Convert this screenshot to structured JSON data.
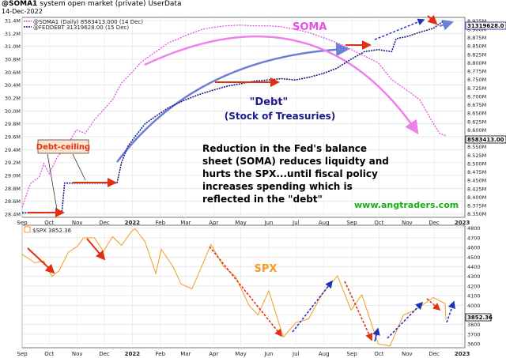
{
  "header": {
    "title": "@SOMA1",
    "subtitle": "system open market (private)",
    "source": "UserData",
    "date": "14-Dec-2022"
  },
  "colors": {
    "soma": "#e64fe6",
    "debt": "#1a1a8c",
    "spx": "#f39c1f",
    "arrow_red": "#e03010",
    "arrow_blue": "#2233bb",
    "trend_blue": "#6d7ed6",
    "trend_pink": "#ee80ee",
    "green": "#16b016",
    "axis_flag_soma": "#000000"
  },
  "upper": {
    "legend_soma": "@SOMA1 (Daily) 8583413.000 (14 Dec)",
    "legend_debt": "@FEDDEBT 31319628.00 (15 Dec)",
    "label_soma": "SOMA",
    "label_debt": "\"Debt\"",
    "label_debt_sub": "(Stock of Treasuries)",
    "callout_debt_ceiling": "Debt-ceiling",
    "annotation": [
      "Reduction in the Fed's balance",
      "sheet (SOMA) reduces liquidty and",
      "hurts the SPX...until fiscal policy",
      "increases spending which is",
      "reflected in the \"debt\""
    ],
    "website": "www.angtraders.com",
    "left_ticks": [
      "31.4M",
      "31.2M",
      "31.0M",
      "30.8M",
      "30.6M",
      "30.4M",
      "30.2M",
      "30.0M",
      "29.8M",
      "29.6M",
      "29.4M",
      "29.2M",
      "29.0M",
      "28.8M",
      "28.6M",
      "28.4M"
    ],
    "right_ticks": [
      "8.925M",
      "8.900M",
      "8.875M",
      "8.850M",
      "8.825M",
      "8.800M",
      "8.775M",
      "8.750M",
      "8.725M",
      "8.700M",
      "8.675M",
      "8.650M",
      "8.625M",
      "8.600M",
      "8.575M",
      "8.550M",
      "8.525M",
      "8.500M",
      "8.475M",
      "8.450M",
      "8.425M",
      "8.400M",
      "8.375M",
      "8.350M"
    ],
    "flag_debt": "31319628.0",
    "flag_soma": "8583413.00"
  },
  "lower": {
    "legend_spx": "$SPX 3852.36",
    "label_spx": "SPX",
    "right_ticks": [
      "4800",
      "4700",
      "4600",
      "4500",
      "4400",
      "4300",
      "4200",
      "4100",
      "4000",
      "3900",
      "3800",
      "3700",
      "3600"
    ],
    "flag_spx": "3852.36"
  },
  "x_axis": {
    "labels": [
      "Sep",
      "Oct",
      "Nov",
      "Dec",
      "2022",
      "Feb",
      "Mar",
      "Apr",
      "May",
      "Jun",
      "Jul",
      "Aug",
      "Sep",
      "Oct",
      "Nov",
      "Dec",
      "2023"
    ]
  },
  "chart_data": [
    {
      "type": "line",
      "title": "@SOMA1 system open market (private)",
      "x_range": [
        "2021-09",
        "2023-01"
      ],
      "series": [
        {
          "name": "@FEDDEBT",
          "axis": "left",
          "ylim": [
            28.35,
            31.45
          ],
          "points": [
            [
              "2021-09-01",
              28.42
            ],
            [
              "2021-09-25",
              28.42
            ],
            [
              "2021-10-15",
              28.43
            ],
            [
              "2021-10-18",
              28.88
            ],
            [
              "2021-11-15",
              28.88
            ],
            [
              "2021-12-10",
              28.88
            ],
            [
              "2021-12-15",
              28.88
            ],
            [
              "2021-12-20",
              29.2
            ],
            [
              "2021-12-27",
              29.45
            ],
            [
              "2022-01-05",
              29.62
            ],
            [
              "2022-01-15",
              29.8
            ],
            [
              "2022-01-25",
              29.9
            ],
            [
              "2022-02-10",
              30.05
            ],
            [
              "2022-02-25",
              30.15
            ],
            [
              "2022-03-15",
              30.25
            ],
            [
              "2022-03-31",
              30.32
            ],
            [
              "2022-04-15",
              30.38
            ],
            [
              "2022-04-30",
              30.42
            ],
            [
              "2022-05-15",
              30.46
            ],
            [
              "2022-05-31",
              30.48
            ],
            [
              "2022-06-15",
              30.5
            ],
            [
              "2022-06-30",
              30.48
            ],
            [
              "2022-07-15",
              30.52
            ],
            [
              "2022-07-31",
              30.58
            ],
            [
              "2022-08-15",
              30.66
            ],
            [
              "2022-08-31",
              30.8
            ],
            [
              "2022-09-15",
              30.92
            ],
            [
              "2022-09-30",
              30.95
            ],
            [
              "2022-10-15",
              30.92
            ],
            [
              "2022-10-20",
              31.12
            ],
            [
              "2022-10-31",
              31.15
            ],
            [
              "2022-11-15",
              31.22
            ],
            [
              "2022-11-30",
              31.28
            ],
            [
              "2022-12-10",
              31.38
            ],
            [
              "2022-12-15",
              31.32
            ]
          ]
        },
        {
          "name": "@SOMA1 (Daily)",
          "axis": "right",
          "ylim": [
            8.34,
            8.935
          ],
          "points": [
            [
              "2021-09-01",
              8.37
            ],
            [
              "2021-09-10",
              8.44
            ],
            [
              "2021-09-20",
              8.46
            ],
            [
              "2021-09-25",
              8.5
            ],
            [
              "2021-10-01",
              8.47
            ],
            [
              "2021-10-10",
              8.52
            ],
            [
              "2021-10-20",
              8.55
            ],
            [
              "2021-10-31",
              8.6
            ],
            [
              "2021-11-10",
              8.59
            ],
            [
              "2021-11-20",
              8.63
            ],
            [
              "2021-11-30",
              8.66
            ],
            [
              "2021-12-10",
              8.69
            ],
            [
              "2021-12-20",
              8.74
            ],
            [
              "2021-12-31",
              8.77
            ],
            [
              "2022-01-10",
              8.8
            ],
            [
              "2022-01-20",
              8.82
            ],
            [
              "2022-01-31",
              8.84
            ],
            [
              "2022-02-10",
              8.86
            ],
            [
              "2022-02-20",
              8.87
            ],
            [
              "2022-02-28",
              8.88
            ],
            [
              "2022-03-10",
              8.89
            ],
            [
              "2022-03-20",
              8.9
            ],
            [
              "2022-03-31",
              8.905
            ],
            [
              "2022-04-15",
              8.91
            ],
            [
              "2022-04-30",
              8.912
            ],
            [
              "2022-05-15",
              8.91
            ],
            [
              "2022-05-31",
              8.91
            ],
            [
              "2022-06-15",
              8.907
            ],
            [
              "2022-06-30",
              8.9
            ],
            [
              "2022-07-15",
              8.89
            ],
            [
              "2022-07-31",
              8.875
            ],
            [
              "2022-08-15",
              8.86
            ],
            [
              "2022-08-31",
              8.84
            ],
            [
              "2022-09-15",
              8.82
            ],
            [
              "2022-09-30",
              8.8
            ],
            [
              "2022-10-15",
              8.75
            ],
            [
              "2022-10-31",
              8.72
            ],
            [
              "2022-11-15",
              8.69
            ],
            [
              "2022-11-30",
              8.62
            ],
            [
              "2022-12-07",
              8.59
            ],
            [
              "2022-12-14",
              8.583
            ]
          ]
        }
      ],
      "right_ylim": [
        8.34,
        8.935
      ]
    },
    {
      "type": "line",
      "title": "$SPX 3852.36",
      "x_range": [
        "2021-09",
        "2023-01"
      ],
      "ylim": [
        3560,
        4830
      ],
      "series": [
        {
          "name": "$SPX",
          "points": [
            [
              "2021-09-01",
              4530
            ],
            [
              "2021-09-15",
              4440
            ],
            [
              "2021-09-25",
              4460
            ],
            [
              "2021-10-04",
              4300
            ],
            [
              "2021-10-12",
              4360
            ],
            [
              "2021-10-22",
              4550
            ],
            [
              "2021-11-01",
              4610
            ],
            [
              "2021-11-08",
              4700
            ],
            [
              "2021-11-20",
              4700
            ],
            [
              "2021-11-30",
              4560
            ],
            [
              "2021-12-10",
              4710
            ],
            [
              "2021-12-20",
              4620
            ],
            [
              "2021-12-31",
              4766
            ],
            [
              "2022-01-04",
              4795
            ],
            [
              "2022-01-15",
              4660
            ],
            [
              "2022-01-27",
              4330
            ],
            [
              "2022-02-02",
              4580
            ],
            [
              "2022-02-15",
              4400
            ],
            [
              "2022-02-24",
              4220
            ],
            [
              "2022-03-08",
              4170
            ],
            [
              "2022-03-29",
              4630
            ],
            [
              "2022-04-12",
              4400
            ],
            [
              "2022-04-25",
              4300
            ],
            [
              "2022-05-10",
              4000
            ],
            [
              "2022-05-20",
              3900
            ],
            [
              "2022-06-01",
              4150
            ],
            [
              "2022-06-17",
              3670
            ],
            [
              "2022-07-01",
              3820
            ],
            [
              "2022-07-15",
              3860
            ],
            [
              "2022-07-31",
              4130
            ],
            [
              "2022-08-16",
              4305
            ],
            [
              "2022-08-31",
              3950
            ],
            [
              "2022-09-12",
              4110
            ],
            [
              "2022-09-30",
              3600
            ],
            [
              "2022-10-13",
              3577
            ],
            [
              "2022-10-28",
              3900
            ],
            [
              "2022-11-10",
              3950
            ],
            [
              "2022-11-30",
              4080
            ],
            [
              "2022-12-13",
              4019
            ],
            [
              "2022-12-14",
              3852
            ]
          ]
        }
      ]
    }
  ]
}
